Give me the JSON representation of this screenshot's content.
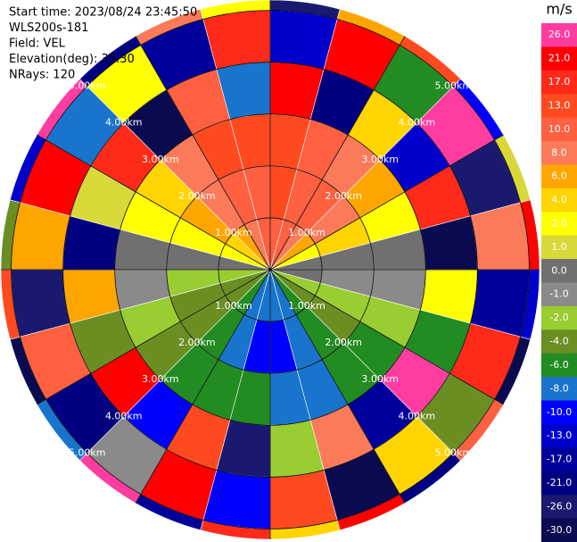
{
  "chart_data": {
    "type": "ppi",
    "info": [
      "Start time: 2023/08/24 23:45:50",
      "WLS200s-181",
      "Field: VEL",
      "Elevation(deg): 35.30",
      "NRays: 120"
    ],
    "rlim": [
      0,
      5.2
    ],
    "rticks": [
      {
        "value": 1,
        "label": "1.00km"
      },
      {
        "value": 2,
        "label": "2.00km"
      },
      {
        "value": 3,
        "label": "3.00km"
      },
      {
        "value": 4,
        "label": "4.00km"
      },
      {
        "value": 5,
        "label": "5.00km"
      }
    ],
    "azimuths": [
      0,
      15,
      30,
      45,
      60,
      75,
      90,
      105,
      120,
      135,
      150,
      165,
      180,
      195,
      210,
      225,
      240,
      255,
      270,
      285,
      300,
      315,
      330,
      345
    ],
    "ranges": [
      0,
      1,
      2,
      3,
      4,
      5,
      5.2
    ],
    "gates": [
      [
        10,
        10,
        8,
        6,
        2,
        0,
        0,
        -2,
        -4,
        -6,
        -8,
        -8,
        -8,
        -8,
        -6,
        -4,
        -4,
        -2,
        0,
        2,
        4,
        6,
        8,
        10
      ],
      [
        13,
        12,
        10,
        8,
        4,
        0,
        -1,
        -2,
        -4,
        -6,
        -8,
        -9,
        -9,
        -8,
        -6,
        -4,
        -3,
        -2,
        0,
        2,
        6,
        8,
        10,
        12
      ],
      [
        15,
        12,
        9,
        6,
        3,
        0,
        -1,
        -2,
        -5,
        -6,
        -8,
        -7,
        -6,
        -6,
        -5,
        -3,
        -2,
        -1,
        0,
        3,
        5,
        8,
        13,
        15
      ],
      [
        24,
        -20,
        5,
        -11,
        18,
        -28,
        2,
        -6,
        26,
        -15,
        9,
        -2,
        -24,
        13,
        -9,
        21,
        -4,
        7,
        -18,
        1,
        17,
        -27,
        11,
        -7
      ],
      [
        -13,
        22,
        -5,
        27,
        -22,
        8,
        -17,
        19,
        -3,
        4,
        -29,
        14,
        -10,
        25,
        -1,
        -19,
        10,
        -25,
        6,
        23,
        -8,
        3,
        -14,
        20
      ],
      [
        -26,
        7,
        16,
        -9,
        1,
        24,
        -12,
        -30,
        12,
        -20,
        22,
        5,
        18,
        -16,
        27,
        -7,
        -28,
        15,
        -3,
        -11,
        26,
        -21,
        9,
        2
      ]
    ],
    "colorbar": {
      "label": "m/s",
      "ticks": [
        {
          "value": 26,
          "label": "26.0"
        },
        {
          "value": 21,
          "label": "21.0"
        },
        {
          "value": 17,
          "label": "17.0"
        },
        {
          "value": 13,
          "label": "13.0"
        },
        {
          "value": 10,
          "label": "10.0"
        },
        {
          "value": 8,
          "label": "8.0"
        },
        {
          "value": 6,
          "label": "6.0"
        },
        {
          "value": 4,
          "label": "4.0"
        },
        {
          "value": 2,
          "label": "2.0"
        },
        {
          "value": 1,
          "label": "1.0"
        },
        {
          "value": 0,
          "label": "0.0"
        },
        {
          "value": -1,
          "label": "-1.0"
        },
        {
          "value": -2,
          "label": "-2.0"
        },
        {
          "value": -4,
          "label": "-4.0"
        },
        {
          "value": -6,
          "label": "-6.0"
        },
        {
          "value": -8,
          "label": "-8.0"
        },
        {
          "value": -10,
          "label": "-10.0"
        },
        {
          "value": -13,
          "label": "-13.0"
        },
        {
          "value": -17,
          "label": "-17.0"
        },
        {
          "value": -21,
          "label": "-21.0"
        },
        {
          "value": -26,
          "label": "-26.0"
        },
        {
          "value": -30,
          "label": "-30.0"
        }
      ],
      "colors": [
        "#ff3ca0",
        "#ff0000",
        "#ff2a1a",
        "#ff4a20",
        "#ff6040",
        "#fa7a5a",
        "#ffa500",
        "#ffd400",
        "#ffff00",
        "#d8d838",
        "#707070",
        "#8a8a8a",
        "#9acd32",
        "#6b8e23",
        "#228b22",
        "#1874cd",
        "#0000ff",
        "#0000cd",
        "#00009a",
        "#000080",
        "#191970",
        "#0a0a50"
      ]
    }
  }
}
